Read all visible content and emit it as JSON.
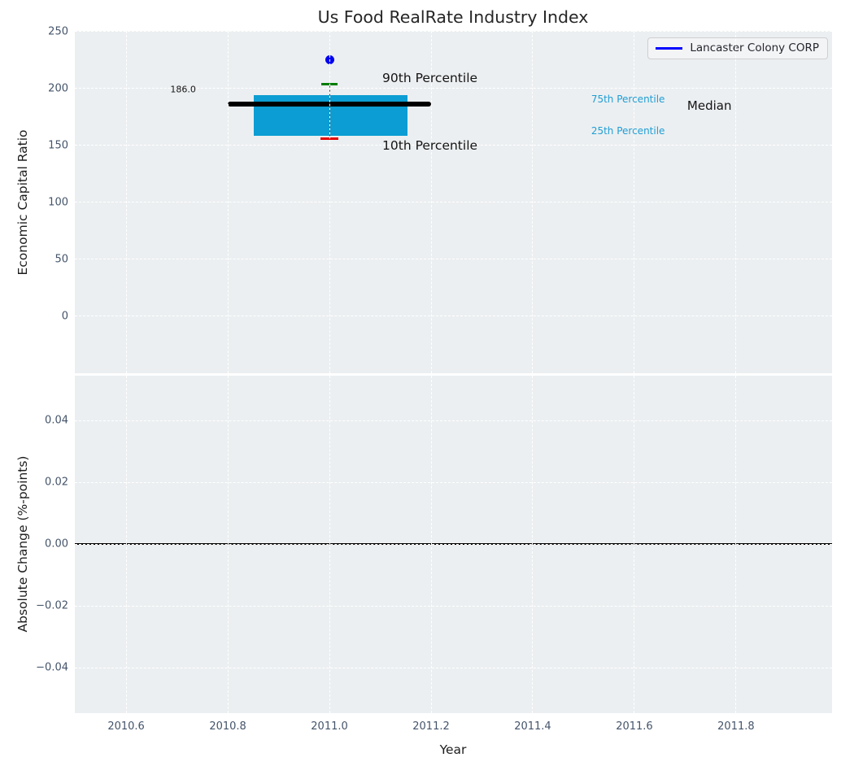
{
  "title": "Us Food RealRate Industry Index",
  "legend": {
    "label": "Lancaster Colony CORP",
    "line_color": "#0000ff"
  },
  "colors": {
    "panel_bg": "#eceff1",
    "grid": "#ffffff",
    "tick_text": "#44546a",
    "box_fill": "#0b9dd3",
    "p90_cap": "#007d00",
    "p10_cap": "#e60000",
    "median_line": "#000000",
    "company_dot": "#0000f0",
    "cyan_text": "#1f9ed5"
  },
  "chart_data": [
    {
      "type": "box",
      "title": "Us Food RealRate Industry Index",
      "ylabel": "Economic Capital Ratio",
      "ylim": [
        -50.4,
        250.7
      ],
      "yticks": [
        {
          "v": 0,
          "label": "0"
        },
        {
          "v": 50,
          "label": "50"
        },
        {
          "v": 100,
          "label": "100"
        },
        {
          "v": 150,
          "label": "150"
        },
        {
          "v": 200,
          "label": "200"
        },
        {
          "v": 250,
          "label": "250"
        }
      ],
      "xlim": [
        2010.499,
        2011.989
      ],
      "grid": "white dashed",
      "legend_position": "upper right",
      "box": {
        "x_center": 2011.0,
        "box_left": 2010.851,
        "box_right": 2011.154,
        "median_left": 2010.8,
        "median_right": 2011.2,
        "p10": 156,
        "p25": 158.5,
        "median": 186.0,
        "p75": 194.5,
        "p90": 204,
        "company_value": 225
      },
      "annotations": [
        {
          "id": "p90-label",
          "text": "90th Percentile",
          "x": 2011.104,
          "y": 209,
          "anchor": "left",
          "cls": "ann-black-lg"
        },
        {
          "id": "p10-label",
          "text": "10th Percentile",
          "x": 2011.104,
          "y": 150,
          "anchor": "left",
          "cls": "ann-black-lg"
        },
        {
          "id": "p75-label",
          "text": "75th Percentile",
          "x": 2011.515,
          "y": 190.5,
          "anchor": "left",
          "cls": "ann-cyan"
        },
        {
          "id": "p25-label",
          "text": "25th Percentile",
          "x": 2011.515,
          "y": 162.5,
          "anchor": "left",
          "cls": "ann-cyan"
        },
        {
          "id": "median-label",
          "text": "Median",
          "x": 2011.704,
          "y": 185,
          "anchor": "left",
          "cls": "ann-black-md"
        },
        {
          "id": "median-value",
          "text": "186.0",
          "x": 2010.712,
          "y": 199.5,
          "anchor": "center",
          "cls": "ann-black-sm"
        }
      ]
    },
    {
      "type": "line",
      "ylabel": "Absolute Change (%-points)",
      "xlabel": "Year",
      "ylim": [
        -0.0547,
        0.0545
      ],
      "yticks": [
        {
          "v": -0.04,
          "label": "−0.04"
        },
        {
          "v": -0.02,
          "label": "−0.02"
        },
        {
          "v": 0,
          "label": "0.00"
        },
        {
          "v": 0.02,
          "label": "0.02"
        },
        {
          "v": 0.04,
          "label": "0.04"
        }
      ],
      "xticks": [
        {
          "v": 2010.6,
          "label": "2010.6"
        },
        {
          "v": 2010.8,
          "label": "2010.8"
        },
        {
          "v": 2011.0,
          "label": "2011.0"
        },
        {
          "v": 2011.2,
          "label": "2011.2"
        },
        {
          "v": 2011.4,
          "label": "2011.4"
        },
        {
          "v": 2011.6,
          "label": "2011.6"
        },
        {
          "v": 2011.8,
          "label": "2011.8"
        }
      ],
      "zero_line": 0.0,
      "series": []
    }
  ]
}
